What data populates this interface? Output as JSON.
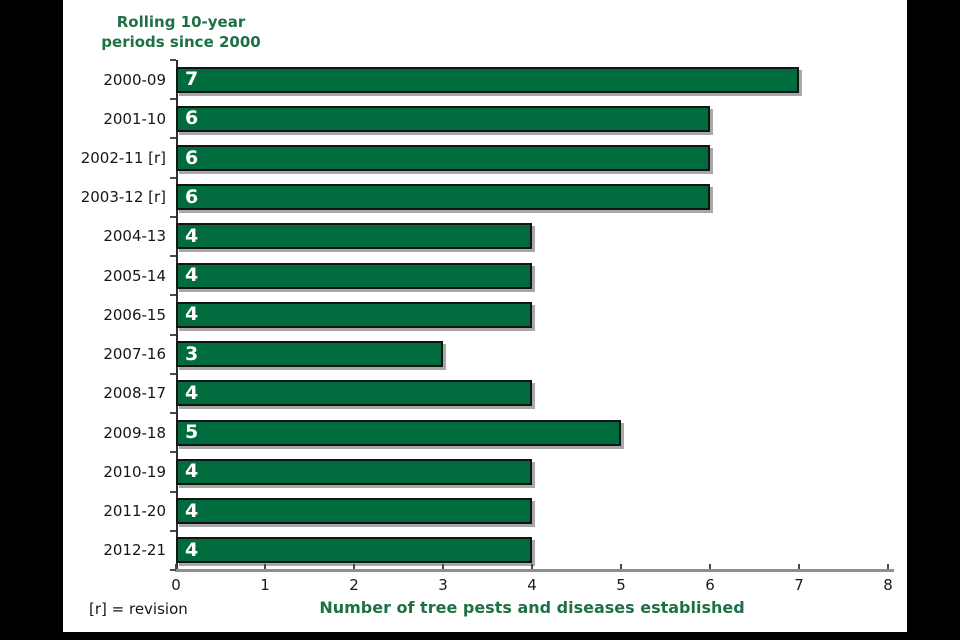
{
  "page": {
    "background_color": "#000000",
    "panel_color": "#ffffff"
  },
  "chart_data": {
    "type": "bar",
    "orientation": "horizontal",
    "title": "Rolling 10-year periods since 2000",
    "title_lines": [
      "Rolling 10-year",
      "periods since 2000"
    ],
    "categories": [
      "2000-09",
      "2001-10",
      "2002-11 [r]",
      "2003-12 [r]",
      "2004-13",
      "2005-14",
      "2006-15",
      "2007-16",
      "2008-17",
      "2009-18",
      "2010-19",
      "2011-20",
      "2012-21"
    ],
    "values": [
      7,
      6,
      6,
      6,
      4,
      4,
      4,
      3,
      4,
      5,
      4,
      4,
      4
    ],
    "xlabel": "Number of tree pests and diseases established",
    "xlim": [
      0,
      8
    ],
    "xticks": [
      0,
      1,
      2,
      3,
      4,
      5,
      6,
      7,
      8
    ],
    "footnote": "[r] = revision",
    "grid": false,
    "legend": false,
    "bar_color": "#006b3c",
    "bar_border_color": "#141414",
    "bar_shadow_color": "#a8a8a8",
    "value_label_color": "#ffffff",
    "title_color": "#1e7145",
    "axis_line_color": "#8f8f8f"
  }
}
